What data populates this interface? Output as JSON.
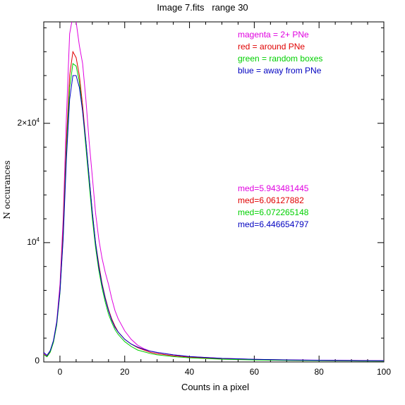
{
  "chart_data": {
    "type": "line",
    "title": "Image 7.fits   range 30",
    "xlabel": "Counts in a pixel",
    "ylabel": "N occurances",
    "xlim": [
      -5,
      100
    ],
    "ylim": [
      0,
      28500
    ],
    "x_ticks": [
      {
        "value": 0,
        "label": "0"
      },
      {
        "value": 20,
        "label": "20"
      },
      {
        "value": 40,
        "label": "40"
      },
      {
        "value": 60,
        "label": "60"
      },
      {
        "value": 80,
        "label": "80"
      },
      {
        "value": 100,
        "label": "100"
      }
    ],
    "y_ticks": [
      {
        "value": 0,
        "label": "0",
        "exp": ""
      },
      {
        "value": 10000,
        "label": "10",
        "exp": "4"
      },
      {
        "value": 20000,
        "label": "2×10",
        "exp": "4"
      }
    ],
    "grid": false,
    "legend_position": "top-right",
    "legend": [
      {
        "text": "magenta = 2+ PNe",
        "color": "#e000e0"
      },
      {
        "text": "red = around PNe",
        "color": "#e00000"
      },
      {
        "text": "green = random boxes",
        "color": "#00d000"
      },
      {
        "text": "blue = away from PNe",
        "color": "#0000c0"
      }
    ],
    "annotations": [
      {
        "text": "med=5.943481445",
        "color": "#e000e0"
      },
      {
        "text": "med=6.06127882",
        "color": "#e00000"
      },
      {
        "text": "med=6.072265148",
        "color": "#00d000"
      },
      {
        "text": "med=6.446654797",
        "color": "#0000c0"
      }
    ],
    "series": [
      {
        "color": "#e000e0",
        "x": [
          -5,
          -4,
          -3,
          -2,
          -1,
          0,
          1,
          2,
          3,
          4,
          5,
          6,
          7,
          8,
          9,
          10,
          11,
          12,
          13,
          14,
          15,
          16,
          17,
          18,
          20,
          22,
          24,
          26,
          28,
          30,
          35,
          40,
          50,
          60,
          70,
          80,
          90,
          100
        ],
        "y": [
          700,
          500,
          900,
          1800,
          3400,
          6500,
          12000,
          20500,
          27500,
          29000,
          28500,
          26500,
          25000,
          22000,
          18500,
          15500,
          12500,
          10300,
          8700,
          7500,
          6500,
          5300,
          4300,
          3600,
          2600,
          1900,
          1400,
          1100,
          900,
          800,
          600,
          450,
          300,
          220,
          180,
          150,
          130,
          110
        ]
      },
      {
        "color": "#e00000",
        "x": [
          -5,
          -4,
          -3,
          -2,
          -1,
          0,
          1,
          2,
          3,
          4,
          5,
          6,
          7,
          8,
          9,
          10,
          11,
          12,
          13,
          14,
          15,
          16,
          17,
          18,
          20,
          22,
          24,
          26,
          28,
          30,
          35,
          40,
          50,
          60,
          70,
          80,
          90,
          100
        ],
        "y": [
          650,
          450,
          850,
          1700,
          3200,
          6000,
          11000,
          18500,
          24000,
          26000,
          25500,
          24000,
          21500,
          18500,
          15500,
          12500,
          10000,
          8200,
          6600,
          5400,
          4400,
          3600,
          3000,
          2500,
          1900,
          1500,
          1200,
          1000,
          800,
          700,
          520,
          400,
          260,
          190,
          150,
          120,
          100,
          80
        ]
      },
      {
        "color": "#00d000",
        "x": [
          -5,
          -4,
          -3,
          -2,
          -1,
          0,
          1,
          2,
          3,
          4,
          5,
          6,
          7,
          8,
          9,
          10,
          11,
          12,
          13,
          14,
          15,
          16,
          17,
          18,
          20,
          22,
          24,
          26,
          28,
          30,
          35,
          40,
          50,
          60,
          70,
          80,
          90,
          100
        ],
        "y": [
          620,
          430,
          820,
          1650,
          3100,
          5800,
          10500,
          17800,
          23000,
          25000,
          24800,
          23500,
          21000,
          18000,
          15000,
          12000,
          9600,
          7700,
          6200,
          5000,
          4000,
          3300,
          2700,
          2300,
          1700,
          1300,
          1000,
          850,
          700,
          600,
          450,
          350,
          230,
          170,
          130,
          110,
          90,
          70
        ]
      },
      {
        "color": "#0000c0",
        "x": [
          -5,
          -4,
          -3,
          -2,
          -1,
          0,
          1,
          2,
          3,
          4,
          5,
          6,
          7,
          8,
          9,
          10,
          11,
          12,
          13,
          14,
          15,
          16,
          17,
          18,
          20,
          22,
          24,
          26,
          28,
          30,
          35,
          40,
          50,
          60,
          70,
          80,
          90,
          100
        ],
        "y": [
          800,
          550,
          950,
          1800,
          3300,
          5900,
          10300,
          17000,
          22000,
          24000,
          24000,
          23000,
          21000,
          18500,
          15500,
          12500,
          10000,
          8000,
          6500,
          5300,
          4300,
          3500,
          2900,
          2500,
          1900,
          1500,
          1250,
          1050,
          900,
          800,
          600,
          450,
          300,
          220,
          170,
          140,
          120,
          100
        ]
      }
    ]
  }
}
